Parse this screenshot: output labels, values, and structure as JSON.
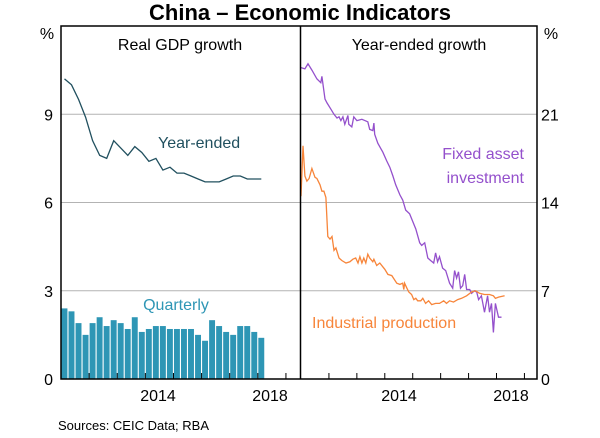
{
  "chart_data": [
    {
      "type": "bar+line",
      "title": "China – Economic Indicators",
      "panel_title": "Real GDP growth",
      "ylabel": "%",
      "ylim": [
        0,
        12
      ],
      "yticks": [
        0,
        3,
        6,
        9
      ],
      "xlim": [
        2011,
        2019.5
      ],
      "xtick_labels": [
        "2014",
        "2018"
      ],
      "grid": true,
      "quarters_start": "2011Q1",
      "series": [
        {
          "name": "Year-ended",
          "type": "line",
          "color": "#21505f",
          "values": [
            10.2,
            10.0,
            9.5,
            8.9,
            8.1,
            7.6,
            7.5,
            8.1,
            7.85,
            7.6,
            7.9,
            7.7,
            7.4,
            7.5,
            7.1,
            7.2,
            7.0,
            7.0,
            6.9,
            6.8,
            6.7,
            6.7,
            6.7,
            6.8,
            6.9,
            6.9,
            6.8,
            6.8,
            6.8
          ]
        },
        {
          "name": "Quarterly",
          "type": "bar",
          "color": "#2e96b5",
          "values": [
            2.4,
            2.3,
            1.9,
            1.5,
            1.9,
            2.1,
            1.8,
            2.0,
            1.9,
            1.7,
            2.1,
            1.6,
            1.7,
            1.8,
            1.8,
            1.7,
            1.7,
            1.7,
            1.7,
            1.5,
            1.3,
            2.0,
            1.8,
            1.6,
            1.5,
            1.8,
            1.8,
            1.6,
            1.4
          ]
        }
      ]
    },
    {
      "type": "line",
      "panel_title": "Year-ended growth",
      "ylabel": "%",
      "ylim": [
        0,
        28
      ],
      "yticks": [
        0,
        7,
        14,
        21
      ],
      "xlim": [
        2011,
        2019.45
      ],
      "xtick_labels": [
        "2014",
        "2018"
      ],
      "grid": true,
      "series": [
        {
          "name": "Fixed asset investment",
          "label_lines": [
            "Fixed asset",
            "investment"
          ],
          "color": "#9450cc",
          "points": [
            [
              2011.0,
              24.7
            ],
            [
              2011.14,
              24.6
            ],
            [
              2011.25,
              25.0
            ],
            [
              2011.39,
              24.5
            ],
            [
              2011.57,
              23.8
            ],
            [
              2011.71,
              23.5
            ],
            [
              2011.75,
              24.0
            ],
            [
              2011.86,
              22.2
            ],
            [
              2011.93,
              21.9
            ],
            [
              2012.07,
              21.4
            ],
            [
              2012.18,
              21.0
            ],
            [
              2012.29,
              20.7
            ],
            [
              2012.36,
              20.8
            ],
            [
              2012.43,
              20.5
            ],
            [
              2012.5,
              20.8
            ],
            [
              2012.57,
              20.2
            ],
            [
              2012.68,
              20.9
            ],
            [
              2012.71,
              20.2
            ],
            [
              2012.82,
              20.0
            ],
            [
              2012.89,
              20.8
            ],
            [
              2013.0,
              20.5
            ],
            [
              2013.18,
              20.6
            ],
            [
              2013.39,
              20.4
            ],
            [
              2013.46,
              19.8
            ],
            [
              2013.57,
              19.7
            ],
            [
              2013.61,
              20.3
            ],
            [
              2013.64,
              19.4
            ],
            [
              2013.75,
              18.7
            ],
            [
              2013.93,
              18.0
            ],
            [
              2014.07,
              17.3
            ],
            [
              2014.18,
              16.8
            ],
            [
              2014.29,
              16.1
            ],
            [
              2014.39,
              15.4
            ],
            [
              2014.54,
              14.6
            ],
            [
              2014.64,
              14.2
            ],
            [
              2014.75,
              13.4
            ],
            [
              2014.89,
              13.1
            ],
            [
              2015.0,
              12.5
            ],
            [
              2015.11,
              11.9
            ],
            [
              2015.25,
              10.8
            ],
            [
              2015.32,
              10.6
            ],
            [
              2015.43,
              10.8
            ],
            [
              2015.54,
              9.6
            ],
            [
              2015.64,
              9.4
            ],
            [
              2015.75,
              9.2
            ],
            [
              2015.82,
              10.0
            ],
            [
              2015.89,
              9.3
            ],
            [
              2015.96,
              9.7
            ],
            [
              2016.07,
              8.8
            ],
            [
              2016.18,
              8.6
            ],
            [
              2016.32,
              7.6
            ],
            [
              2016.43,
              7.2
            ],
            [
              2016.5,
              8.6
            ],
            [
              2016.57,
              8.0
            ],
            [
              2016.64,
              8.5
            ],
            [
              2016.71,
              7.2
            ],
            [
              2016.79,
              7.4
            ],
            [
              2016.86,
              8.3
            ],
            [
              2016.93,
              7.1
            ],
            [
              2017.04,
              7.1
            ],
            [
              2017.11,
              6.8
            ],
            [
              2017.21,
              7.0
            ],
            [
              2017.29,
              6.9
            ],
            [
              2017.36,
              6.3
            ],
            [
              2017.46,
              6.6
            ],
            [
              2017.57,
              5.3
            ],
            [
              2017.68,
              6.6
            ],
            [
              2017.75,
              5.3
            ],
            [
              2017.82,
              6.0
            ],
            [
              2017.89,
              3.7
            ],
            [
              2017.96,
              6.0
            ],
            [
              2018.07,
              4.9
            ],
            [
              2018.18,
              4.9
            ]
          ]
        },
        {
          "name": "Industrial production",
          "color": "#f7853a",
          "points": [
            [
              2011.0,
              14.5
            ],
            [
              2011.07,
              18.5
            ],
            [
              2011.14,
              16.1
            ],
            [
              2011.21,
              15.7
            ],
            [
              2011.29,
              15.9
            ],
            [
              2011.39,
              16.7
            ],
            [
              2011.5,
              16.0
            ],
            [
              2011.57,
              15.9
            ],
            [
              2011.68,
              15.4
            ],
            [
              2011.75,
              14.9
            ],
            [
              2011.82,
              14.9
            ],
            [
              2011.89,
              14.4
            ],
            [
              2011.96,
              11.3
            ],
            [
              2012.04,
              11.1
            ],
            [
              2012.11,
              11.3
            ],
            [
              2012.18,
              10.2
            ],
            [
              2012.25,
              10.4
            ],
            [
              2012.36,
              9.6
            ],
            [
              2012.46,
              9.4
            ],
            [
              2012.61,
              9.2
            ],
            [
              2012.75,
              9.3
            ],
            [
              2012.86,
              9.5
            ],
            [
              2012.96,
              9.6
            ],
            [
              2013.04,
              9.2
            ],
            [
              2013.11,
              9.7
            ],
            [
              2013.18,
              9.2
            ],
            [
              2013.25,
              9.6
            ],
            [
              2013.32,
              9.2
            ],
            [
              2013.39,
              9.9
            ],
            [
              2013.46,
              9.6
            ],
            [
              2013.57,
              9.3
            ],
            [
              2013.61,
              9.5
            ],
            [
              2013.71,
              9.0
            ],
            [
              2013.82,
              9.2
            ],
            [
              2013.93,
              8.9
            ],
            [
              2014.0,
              8.7
            ],
            [
              2014.11,
              8.3
            ],
            [
              2014.25,
              8.2
            ],
            [
              2014.43,
              7.6
            ],
            [
              2014.54,
              7.5
            ],
            [
              2014.64,
              7.6
            ],
            [
              2014.68,
              7.1
            ],
            [
              2014.71,
              7.6
            ],
            [
              2014.79,
              7.2
            ],
            [
              2014.86,
              6.9
            ],
            [
              2014.96,
              6.7
            ],
            [
              2015.04,
              6.3
            ],
            [
              2015.11,
              6.4
            ],
            [
              2015.18,
              6.2
            ],
            [
              2015.29,
              6.2
            ],
            [
              2015.36,
              6.4
            ],
            [
              2015.46,
              6.0
            ],
            [
              2015.57,
              6.2
            ],
            [
              2015.68,
              5.9
            ],
            [
              2015.82,
              6.0
            ],
            [
              2015.96,
              6.0
            ],
            [
              2016.11,
              6.2
            ],
            [
              2016.21,
              6.0
            ],
            [
              2016.32,
              6.2
            ],
            [
              2016.46,
              6.1
            ],
            [
              2016.61,
              6.3
            ],
            [
              2016.75,
              6.4
            ],
            [
              2016.93,
              6.6
            ],
            [
              2017.11,
              6.9
            ],
            [
              2017.25,
              7.0
            ],
            [
              2017.39,
              6.8
            ],
            [
              2017.57,
              6.7
            ],
            [
              2017.75,
              6.7
            ],
            [
              2017.89,
              6.6
            ],
            [
              2017.96,
              6.4
            ],
            [
              2018.07,
              6.5
            ],
            [
              2018.29,
              6.6
            ]
          ]
        }
      ]
    }
  ],
  "title": "China – Economic Indicators",
  "sources": "Sources:   CEIC Data; RBA",
  "unit": "%",
  "colors": {
    "grid": "#b3b3b3",
    "axis": "#000000"
  }
}
